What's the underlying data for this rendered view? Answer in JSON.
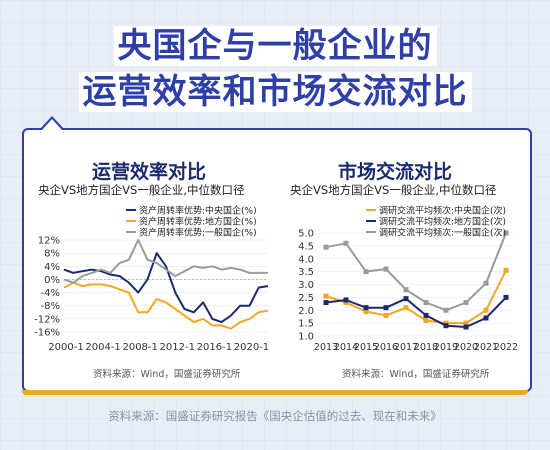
{
  "header": {
    "title_line1": "央国企与一般企业的",
    "title_line2": "运营效率和市场交流对比"
  },
  "footer": {
    "source": "资料来源：国盛证券研究报告《国央企估值的过去、现在和未来》"
  },
  "colors": {
    "accent_blue": "#2f3fa8",
    "accent_orange": "#f5a623",
    "navy": "#1b2a6e",
    "gray": "#9a9a9a"
  },
  "chart_data": [
    {
      "type": "line",
      "title": "运营效率对比",
      "subtitle": "央企VS地方国企VS一般企业,中位数口径",
      "source": "资料来源：Wind，国盛证券研究所",
      "x_tick_labels": [
        "2000-1",
        "2004-1",
        "2008-1",
        "2012-1",
        "2016-1",
        "2020-1"
      ],
      "y_tick_labels": [
        "12%",
        "8%",
        "4%",
        "0%",
        "-4%",
        "-8%",
        "-12%",
        "-16%"
      ],
      "xlim": [
        2000,
        2022
      ],
      "ylim": [
        -16,
        12
      ],
      "y_ticks": [
        12,
        8,
        4,
        0,
        -4,
        -8,
        -12,
        -16
      ],
      "x": [
        2000,
        2001,
        2002,
        2003,
        2004,
        2005,
        2006,
        2007,
        2008,
        2009,
        2010,
        2011,
        2012,
        2013,
        2014,
        2015,
        2016,
        2017,
        2018,
        2019,
        2020,
        2021,
        2022
      ],
      "series": [
        {
          "name": "资产周转率优势:中央国企(%)",
          "color": "#1b2a6e",
          "values": [
            3,
            2,
            2.5,
            3,
            2.5,
            1.5,
            1,
            -1,
            -4,
            0,
            8,
            4,
            -4,
            -9,
            -10,
            -7,
            -12,
            -13,
            -11,
            -8,
            -8,
            -2.5,
            -2
          ]
        },
        {
          "name": "资产周转率优势:地方国企(%)",
          "color": "#f5a623",
          "values": [
            -2.5,
            -1,
            -2,
            -1.5,
            -1.5,
            -2,
            -3,
            -4,
            -10,
            -10,
            -6,
            -7,
            -9,
            -11,
            -13,
            -12,
            -14,
            -14,
            -15,
            -13,
            -12,
            -10,
            -9.5
          ]
        },
        {
          "name": "资产周转率优势:一般国企(%)",
          "color": "#9a9a9a",
          "values": [
            0,
            -1,
            1,
            2,
            3,
            2,
            5,
            6,
            12,
            6,
            5,
            3,
            1,
            2.5,
            4,
            3.5,
            4,
            3,
            3.5,
            3,
            2,
            2,
            2
          ]
        }
      ]
    },
    {
      "type": "line",
      "title": "市场交流对比",
      "subtitle": "央企VS地方国企VS一般企业,中位数口径",
      "source": "资料来源：Wind，国盛证券研究所",
      "categories": [
        "2013",
        "2014",
        "2015",
        "2016",
        "2017",
        "2018",
        "2019",
        "2020",
        "2021",
        "2022"
      ],
      "y_tick_labels": [
        "5.0",
        "4.5",
        "4.0",
        "3.5",
        "3.0",
        "2.5",
        "2.0",
        "1.5",
        "1.0"
      ],
      "ylim": [
        1.0,
        5.0
      ],
      "y_ticks": [
        5.0,
        4.5,
        4.0,
        3.5,
        3.0,
        2.5,
        2.0,
        1.5,
        1.0
      ],
      "series": [
        {
          "name": "调研交流平均频次:中央国企(次)",
          "color": "#f5a623",
          "values": [
            2.55,
            2.3,
            1.95,
            1.8,
            2.1,
            1.6,
            1.5,
            1.5,
            2.0,
            3.55
          ]
        },
        {
          "name": "调研交流平均频次:地方国企(次)",
          "color": "#1b2a6e",
          "values": [
            2.3,
            2.4,
            2.1,
            2.1,
            2.45,
            1.8,
            1.4,
            1.35,
            1.7,
            2.5
          ]
        },
        {
          "name": "调研交流平均频次:一般国企(次)",
          "color": "#9a9a9a",
          "values": [
            4.45,
            4.6,
            3.5,
            3.6,
            2.8,
            2.3,
            2.0,
            2.3,
            3.05,
            5.0
          ]
        }
      ]
    }
  ]
}
